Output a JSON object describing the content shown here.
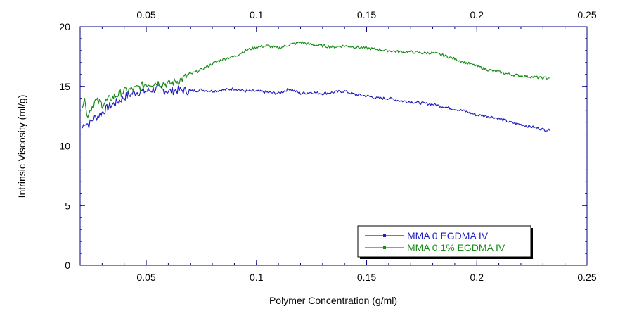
{
  "chart_data": {
    "type": "line",
    "xlabel": "Polymer Concentration (g/ml)",
    "ylabel": "Intrinsic Viscosity (ml/g)",
    "xlim": [
      0.02,
      0.25
    ],
    "ylim": [
      0,
      20
    ],
    "x_ticks": [
      {
        "value": 0.05,
        "label": "0.05"
      },
      {
        "value": 0.1,
        "label": "0.1"
      },
      {
        "value": 0.15,
        "label": "0.15"
      },
      {
        "value": 0.2,
        "label": "0.2"
      },
      {
        "value": 0.25,
        "label": "0.25"
      }
    ],
    "x_ticks_top": [
      {
        "value": 0.05,
        "label": "0.05"
      },
      {
        "value": 0.1,
        "label": "0.1"
      },
      {
        "value": 0.15,
        "label": "0.15"
      },
      {
        "value": 0.2,
        "label": "0.2"
      },
      {
        "value": 0.25,
        "label": "0.25"
      }
    ],
    "y_ticks": [
      {
        "value": 0,
        "label": "0"
      },
      {
        "value": 5,
        "label": "5"
      },
      {
        "value": 10,
        "label": "10"
      },
      {
        "value": 15,
        "label": "15"
      },
      {
        "value": 20,
        "label": "20"
      }
    ],
    "grid": false,
    "legend_position": "bottom-right",
    "series": [
      {
        "name": "MMA 0 EGDMA IV",
        "color": "#1f1fbf",
        "x": [
          0.021,
          0.022,
          0.024,
          0.026,
          0.028,
          0.03,
          0.033,
          0.036,
          0.04,
          0.045,
          0.05,
          0.055,
          0.06,
          0.065,
          0.07,
          0.075,
          0.08,
          0.085,
          0.09,
          0.095,
          0.1,
          0.105,
          0.11,
          0.115,
          0.12,
          0.125,
          0.13,
          0.135,
          0.14,
          0.145,
          0.15,
          0.155,
          0.16,
          0.165,
          0.17,
          0.175,
          0.18,
          0.185,
          0.19,
          0.195,
          0.2,
          0.205,
          0.21,
          0.215,
          0.22,
          0.225,
          0.23,
          0.233
        ],
        "y": [
          11.5,
          12.0,
          11.8,
          12.3,
          12.5,
          12.8,
          13.3,
          13.6,
          14.1,
          14.5,
          14.6,
          14.8,
          14.6,
          14.7,
          14.6,
          14.7,
          14.6,
          14.7,
          14.8,
          14.6,
          14.6,
          14.5,
          14.4,
          14.8,
          14.4,
          14.5,
          14.4,
          14.5,
          14.6,
          14.3,
          14.2,
          14.0,
          14.0,
          13.8,
          13.7,
          13.6,
          13.5,
          13.3,
          13.1,
          12.9,
          12.6,
          12.5,
          12.3,
          12.0,
          11.8,
          11.6,
          11.4,
          11.3
        ]
      },
      {
        "name": "MMA 0.1% EGDMA IV",
        "color": "#1a8a1a",
        "x": [
          0.021,
          0.022,
          0.023,
          0.025,
          0.027,
          0.03,
          0.033,
          0.036,
          0.04,
          0.045,
          0.05,
          0.055,
          0.06,
          0.065,
          0.07,
          0.075,
          0.08,
          0.085,
          0.09,
          0.095,
          0.1,
          0.105,
          0.11,
          0.115,
          0.12,
          0.125,
          0.13,
          0.135,
          0.14,
          0.145,
          0.15,
          0.155,
          0.16,
          0.165,
          0.17,
          0.175,
          0.18,
          0.185,
          0.19,
          0.195,
          0.2,
          0.205,
          0.21,
          0.215,
          0.22,
          0.225,
          0.23,
          0.233
        ],
        "y": [
          13.5,
          14.2,
          12.5,
          13.2,
          13.8,
          13.5,
          13.9,
          14.2,
          14.6,
          14.8,
          15.2,
          15.3,
          15.2,
          15.5,
          16.0,
          16.4,
          16.9,
          17.3,
          17.5,
          18.0,
          18.3,
          18.4,
          18.2,
          18.5,
          18.7,
          18.5,
          18.4,
          18.3,
          18.4,
          18.3,
          18.2,
          18.1,
          18.0,
          17.9,
          17.9,
          17.8,
          17.8,
          17.6,
          17.3,
          17.0,
          16.7,
          16.4,
          16.2,
          16.0,
          15.9,
          15.8,
          15.7,
          15.7
        ]
      }
    ]
  }
}
